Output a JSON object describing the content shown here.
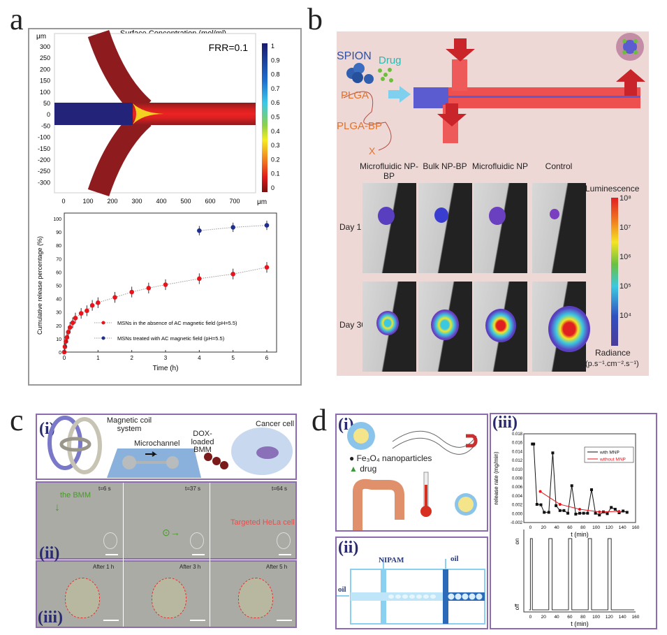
{
  "panel_labels": {
    "a": "a",
    "b": "b",
    "c": "c",
    "d": "d"
  },
  "panel_a": {
    "sim": {
      "title": "Surface Concentration (mol/ml)",
      "unit_x": "μm",
      "unit_y": "μm",
      "annotation": "FRR=0.1",
      "x_ticks": [
        "0",
        "100",
        "200",
        "300",
        "400",
        "500",
        "600",
        "700"
      ],
      "y_ticks": [
        "300",
        "250",
        "200",
        "150",
        "100",
        "50",
        "0",
        "-50",
        "-100",
        "-150",
        "-200",
        "-250",
        "-300"
      ],
      "colorbar_ticks": [
        "1",
        "0.9",
        "0.8",
        "0.7",
        "0.6",
        "0.5",
        "0.4",
        "0.3",
        "0.2",
        "0.1",
        "0"
      ]
    }
  },
  "chart_data": [
    {
      "type": "scatter",
      "id": "release-a",
      "title": "",
      "xlabel": "Time (h)",
      "ylabel": "Cumulative release percentage (%)",
      "xlim": [
        0,
        6
      ],
      "ylim": [
        0,
        100
      ],
      "x_ticks": [
        0,
        1,
        2,
        3,
        4,
        5,
        6
      ],
      "y_ticks": [
        0,
        10,
        20,
        30,
        40,
        50,
        60,
        70,
        80,
        90,
        100
      ],
      "legend_position": "center-right",
      "series": [
        {
          "name": "MSNs in the absence of AC magnetic field (pH=5.5)",
          "color": "#e8141b",
          "x": [
            0,
            0.02,
            0.05,
            0.08,
            0.12,
            0.17,
            0.25,
            0.33,
            0.5,
            0.67,
            0.83,
            1,
            1.5,
            2,
            2.5,
            3,
            4,
            5,
            6
          ],
          "y": [
            0,
            4,
            8,
            11,
            15,
            18.5,
            22,
            25.5,
            29,
            31,
            35,
            37,
            41,
            45,
            48,
            50.5,
            55,
            58.5,
            63.5
          ],
          "error": 4
        },
        {
          "name": "MSNs treated with AC magnetic field (pH=5.5)",
          "color": "#1f2f8f",
          "x": [
            4,
            5,
            6
          ],
          "y": [
            91,
            93.5,
            95
          ],
          "error": 3.5
        }
      ]
    },
    {
      "type": "line",
      "id": "release-d",
      "xlabel": "t (min)",
      "ylabel": "release rate (mg/min)",
      "xlim": [
        -10,
        160
      ],
      "ylim": [
        -0.002,
        0.018
      ],
      "x_ticks": [
        0,
        20,
        40,
        60,
        80,
        100,
        120,
        140,
        160
      ],
      "y_ticks": [
        "-0.002",
        "0.000",
        "0.002",
        "0.004",
        "0.006",
        "0.008",
        "0.010",
        "0.012",
        "0.014",
        "0.016",
        "0.018"
      ],
      "legend_position": "top-right",
      "series": [
        {
          "name": "with MNP",
          "color": "#111111",
          "x": [
            3,
            5,
            10,
            16,
            21,
            28,
            34,
            39,
            45,
            51,
            57,
            63,
            69,
            75,
            81,
            87,
            93,
            99,
            105,
            111,
            117,
            123,
            129,
            135,
            141,
            147
          ],
          "y": [
            0.0157,
            0.0157,
            0.0021,
            0.002,
            0.0003,
            0.0003,
            0.0137,
            0.0018,
            0.0007,
            0.0007,
            0.0001,
            0.0063,
            -0.0001,
            0.0001,
            0.0001,
            0.0001,
            0.0054,
            0.0001,
            -0.0003,
            0.0004,
            0,
            0.0014,
            0.001,
            0.0002,
            0.0006,
            0.0003
          ]
        },
        {
          "name": "without MNP",
          "color": "#e8141b",
          "x": [
            15,
            45,
            75,
            105,
            135
          ],
          "y": [
            0.005,
            0.0021,
            0.001,
            0.0004,
            0.0005
          ]
        }
      ]
    },
    {
      "type": "line",
      "id": "field-d",
      "xlabel": "t (min)",
      "ylabel_on": "on",
      "ylabel_off": "off",
      "xlim": [
        -10,
        160
      ],
      "x_ticks": [
        0,
        20,
        40,
        60,
        80,
        100,
        120,
        140,
        160
      ],
      "on_intervals": [
        [
          0,
          3
        ],
        [
          28,
          33
        ],
        [
          58,
          63
        ],
        [
          88,
          93
        ],
        [
          118,
          123
        ]
      ]
    }
  ],
  "panel_b": {
    "spion": "SPION",
    "drug": "Drug",
    "plga": "PLGA",
    "plga_bp": "PLGA-BP",
    "x_mark": "X",
    "columns": [
      "Microfluidic NP-BP",
      "Bulk NP-BP",
      "Microfluidic NP",
      "Control"
    ],
    "rows": [
      "Day 1",
      "Day 30"
    ],
    "colorbar": {
      "title": "Luminescence",
      "ticks": [
        "10⁸",
        "10⁷",
        "10⁶",
        "10⁵",
        "10⁴"
      ],
      "label": "Radiance",
      "unit": "(p.s⁻¹.cm⁻².s⁻¹)"
    }
  },
  "panel_c": {
    "i": "(i)",
    "ii": "(ii)",
    "iii": "(iii)",
    "coil": "Magnetic coil system",
    "channel": "Microchannel",
    "bmm": "DOX-loaded BMM",
    "cell": "Cancer cell",
    "times": [
      "t=6 s",
      "t=37 s",
      "t=64 s"
    ],
    "bmm_label": "the BMM",
    "target": "Targeted HeLa cell",
    "after": [
      "After 1 h",
      "After 3 h",
      "After 5 h"
    ]
  },
  "panel_d": {
    "i": "(i)",
    "ii": "(ii)",
    "iii": "(iii)",
    "fe": "Fe₃O₄ nanoparticles",
    "drug": "drug",
    "nipam": "NIPAM",
    "oil1": "oil",
    "oil2": "oil"
  }
}
